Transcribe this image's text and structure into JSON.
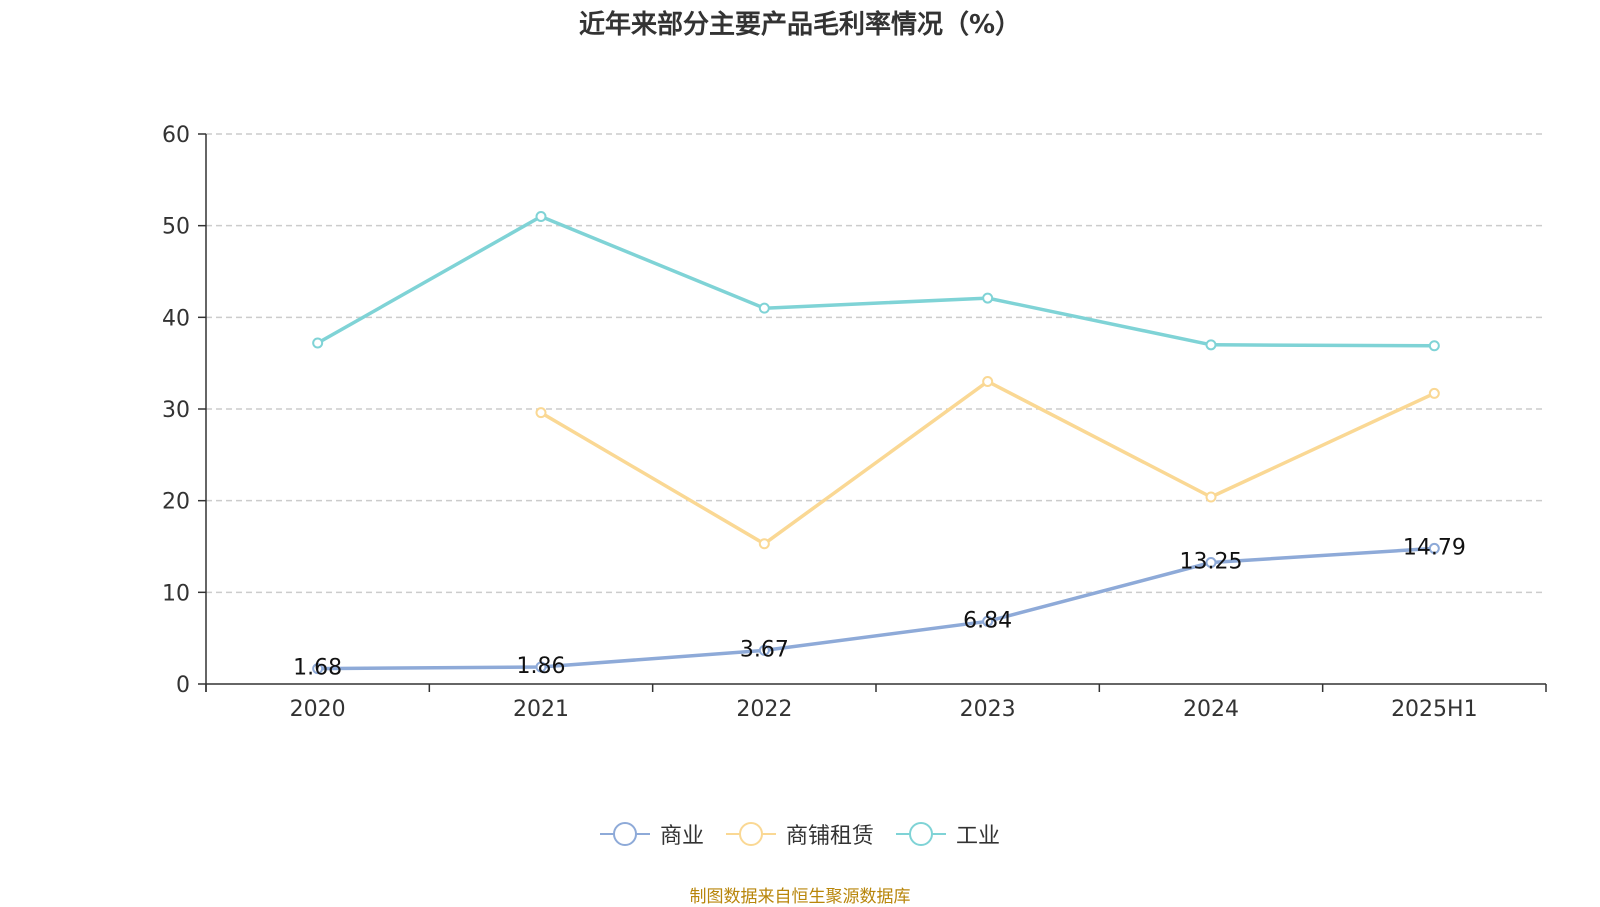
{
  "title": "近年来部分主要产品毛利率情况（%）",
  "source": "制图数据来自恒生聚源数据库",
  "chart_data": {
    "type": "line",
    "title": "近年来部分主要产品毛利率情况（%）",
    "categories": [
      "2020",
      "2021",
      "2022",
      "2023",
      "2024",
      "2025H1"
    ],
    "ylim": [
      0,
      60
    ],
    "yticks": [
      0,
      10,
      20,
      30,
      40,
      50,
      60
    ],
    "grid": true,
    "legend_position": "bottom",
    "series": [
      {
        "name": "商业",
        "color": "#8eaad8",
        "values": [
          1.68,
          1.86,
          3.67,
          6.84,
          13.25,
          14.79
        ],
        "labels": [
          "1.68",
          "1.86",
          "3.67",
          "6.84",
          "13.25",
          "14.79"
        ]
      },
      {
        "name": "商铺租赁",
        "color": "#fad894",
        "values": [
          null,
          29.6,
          15.3,
          33.0,
          20.4,
          31.7
        ]
      },
      {
        "name": "工业",
        "color": "#7fd3d6",
        "values": [
          37.2,
          51.0,
          41.0,
          42.1,
          37.0,
          36.9
        ]
      }
    ]
  }
}
